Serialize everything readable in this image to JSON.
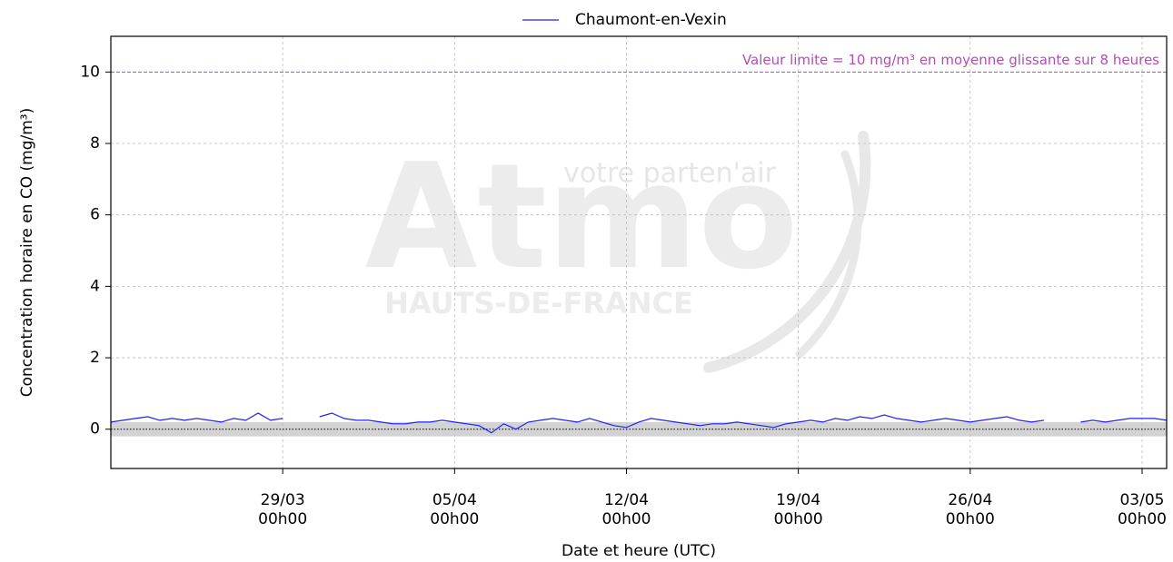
{
  "chart_data": {
    "type": "line",
    "legend_label": "Chaumont-en-Vexin",
    "legend_position": "top-center",
    "xlabel": "Date et heure (UTC)",
    "ylabel": "Concentration horaire en CO (mg/m³)",
    "watermark": {
      "tagline": "votre parten'air",
      "brand": "Atmo",
      "region": "HAUTS-DE-FRANCE"
    },
    "reference_line": {
      "value": 10,
      "label": "Valeur limite = 10 mg/m³ en moyenne glissante sur 8 heures",
      "color": "#b04fb0"
    },
    "baseline": 0,
    "shaded_band": [
      -0.2,
      0.2
    ],
    "grid": true,
    "xlim": [
      "22/03 00h00",
      "04/05 00h00"
    ],
    "xticks": [
      "29/03 00h00",
      "05/04 00h00",
      "12/04 00h00",
      "19/04 00h00",
      "26/04 00h00",
      "03/05 00h00"
    ],
    "ylim": [
      -1.1,
      11
    ],
    "yticks": [
      0,
      2,
      4,
      6,
      8,
      10
    ],
    "x": [
      "22/03 00h00",
      "22/03 12h00",
      "23/03 00h00",
      "23/03 12h00",
      "24/03 00h00",
      "24/03 12h00",
      "25/03 00h00",
      "25/03 12h00",
      "26/03 00h00",
      "26/03 12h00",
      "27/03 00h00",
      "27/03 12h00",
      "28/03 00h00",
      "28/03 12h00",
      "29/03 00h00",
      "29/03 12h00",
      "30/03 00h00",
      "30/03 12h00",
      "31/03 00h00",
      "31/03 12h00",
      "01/04 00h00",
      "01/04 12h00",
      "02/04 00h00",
      "02/04 12h00",
      "03/04 00h00",
      "03/04 12h00",
      "04/04 00h00",
      "04/04 12h00",
      "05/04 00h00",
      "05/04 12h00",
      "06/04 00h00",
      "06/04 12h00",
      "07/04 00h00",
      "07/04 12h00",
      "08/04 00h00",
      "08/04 12h00",
      "09/04 00h00",
      "09/04 12h00",
      "10/04 00h00",
      "10/04 12h00",
      "11/04 00h00",
      "11/04 12h00",
      "12/04 00h00",
      "12/04 12h00",
      "13/04 00h00",
      "13/04 12h00",
      "14/04 00h00",
      "14/04 12h00",
      "15/04 00h00",
      "15/04 12h00",
      "16/04 00h00",
      "16/04 12h00",
      "17/04 00h00",
      "17/04 12h00",
      "18/04 00h00",
      "18/04 12h00",
      "19/04 00h00",
      "19/04 12h00",
      "20/04 00h00",
      "20/04 12h00",
      "21/04 00h00",
      "21/04 12h00",
      "22/04 00h00",
      "22/04 12h00",
      "23/04 00h00",
      "23/04 12h00",
      "24/04 00h00",
      "24/04 12h00",
      "25/04 00h00",
      "25/04 12h00",
      "26/04 00h00",
      "26/04 12h00",
      "27/04 00h00",
      "27/04 12h00",
      "28/04 00h00",
      "28/04 12h00",
      "29/04 00h00",
      "29/04 12h00",
      "30/04 00h00",
      "30/04 12h00",
      "01/05 00h00",
      "01/05 12h00",
      "02/05 00h00",
      "02/05 12h00",
      "03/05 00h00",
      "03/05 12h00",
      "04/05 00h00"
    ],
    "series": [
      {
        "name": "Chaumont-en-Vexin",
        "color": "#1f1fff",
        "values": [
          0.2,
          0.25,
          0.3,
          0.35,
          0.25,
          0.3,
          0.25,
          0.3,
          0.25,
          0.2,
          0.3,
          0.25,
          0.45,
          0.25,
          0.3,
          null,
          null,
          0.35,
          0.45,
          0.3,
          0.25,
          0.25,
          0.2,
          0.15,
          0.15,
          0.2,
          0.2,
          0.25,
          0.2,
          0.15,
          0.1,
          -0.1,
          0.15,
          0,
          0.2,
          0.25,
          0.3,
          0.25,
          0.2,
          0.3,
          0.2,
          0.1,
          0.05,
          0.2,
          0.3,
          0.25,
          0.2,
          0.15,
          0.1,
          0.15,
          0.15,
          0.2,
          0.15,
          0.1,
          0.05,
          0.15,
          0.2,
          0.25,
          0.2,
          0.3,
          0.25,
          0.35,
          0.3,
          0.4,
          0.3,
          0.25,
          0.2,
          0.25,
          0.3,
          0.25,
          0.2,
          0.25,
          0.3,
          0.35,
          0.25,
          0.2,
          0.25,
          null,
          null,
          0.2,
          0.25,
          0.2,
          0.25,
          0.3,
          0.3,
          0.3,
          0.25
        ]
      }
    ]
  }
}
